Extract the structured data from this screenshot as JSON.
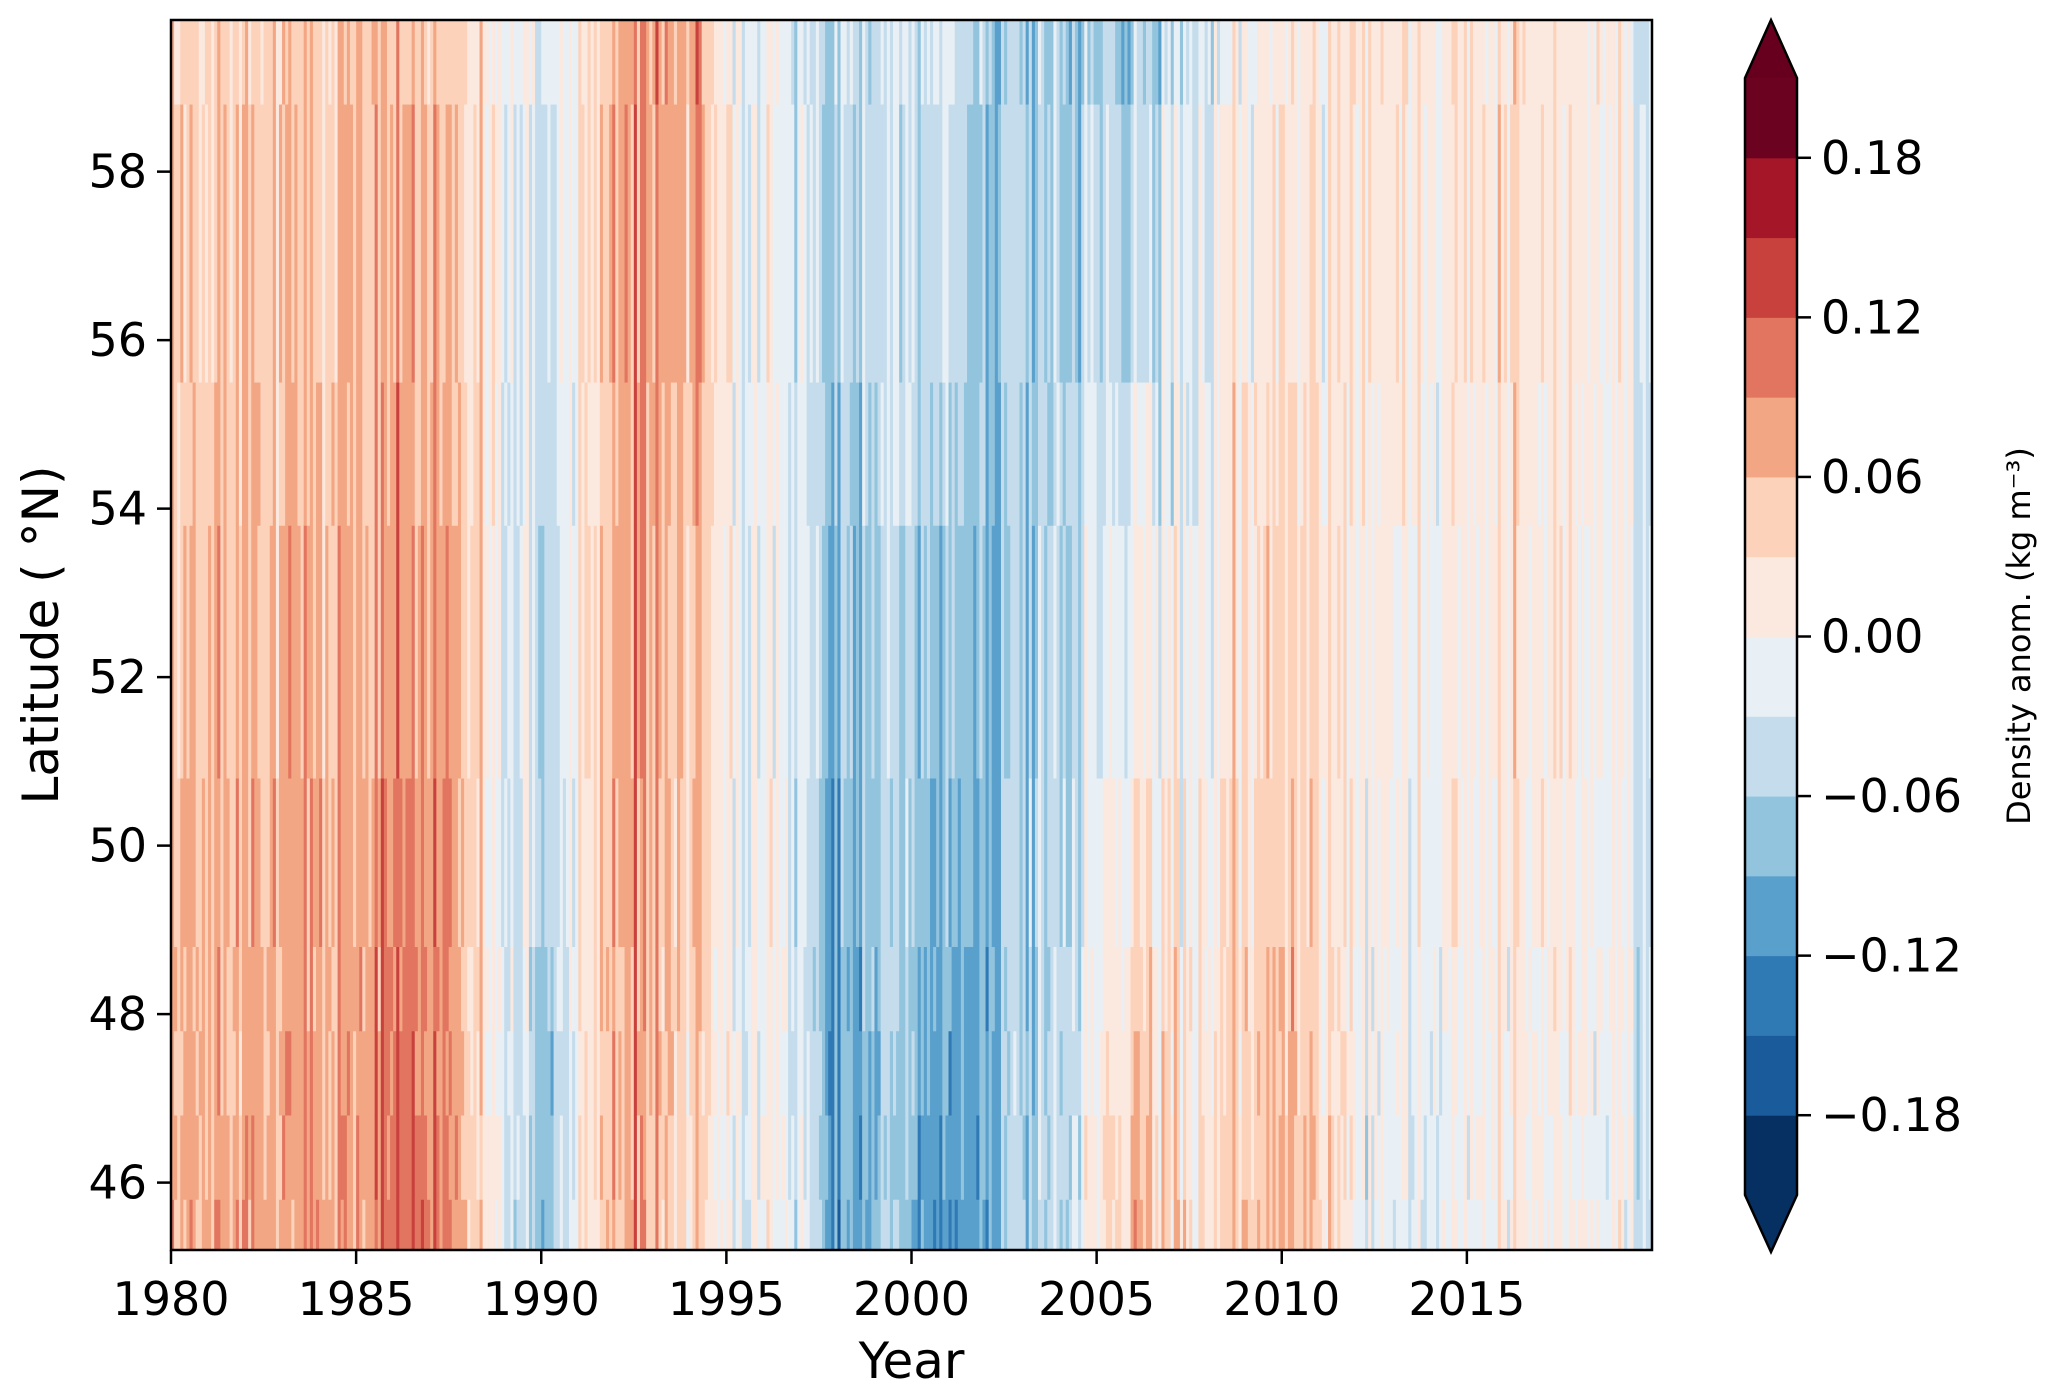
{
  "chart_data": {
    "type": "heatmap",
    "title": "",
    "xlabel": "Year",
    "ylabel": "Latitude ( $^\\circ$N)",
    "ylabel_display": "Latitude ( °N)",
    "xlim": [
      1980,
      2020
    ],
    "ylim": [
      45.2,
      59.8
    ],
    "x_ticks": [
      1980,
      1985,
      1990,
      1995,
      2000,
      2005,
      2010,
      2015
    ],
    "x_tick_labels": [
      "1980",
      "1985",
      "1990",
      "1995",
      "2000",
      "2005",
      "2010",
      "2015"
    ],
    "y_ticks": [
      46,
      48,
      50,
      52,
      54,
      56,
      58
    ],
    "y_tick_labels": [
      "46",
      "48",
      "50",
      "52",
      "54",
      "56",
      "58"
    ],
    "latitude_bands": [
      {
        "from": 45.2,
        "to": 45.8
      },
      {
        "from": 45.8,
        "to": 46.8
      },
      {
        "from": 46.8,
        "to": 47.8
      },
      {
        "from": 47.8,
        "to": 48.8
      },
      {
        "from": 48.8,
        "to": 50.8
      },
      {
        "from": 50.8,
        "to": 53.8
      },
      {
        "from": 53.8,
        "to": 55.5
      },
      {
        "from": 55.5,
        "to": 58.8
      },
      {
        "from": 58.8,
        "to": 59.8
      }
    ],
    "time_resolution": "monthly",
    "signal_pattern": [
      {
        "year": 1980.0,
        "north": 0.04,
        "south": 0.07
      },
      {
        "year": 1982.0,
        "north": 0.03,
        "south": 0.06
      },
      {
        "year": 1983.5,
        "north": 0.05,
        "south": 0.08
      },
      {
        "year": 1985.0,
        "north": 0.04,
        "south": 0.07
      },
      {
        "year": 1986.5,
        "north": 0.07,
        "south": 0.13
      },
      {
        "year": 1987.5,
        "north": 0.05,
        "south": 0.1
      },
      {
        "year": 1988.5,
        "north": 0.02,
        "south": 0.02
      },
      {
        "year": 1990.0,
        "north": -0.02,
        "south": -0.08
      },
      {
        "year": 1991.0,
        "north": 0.01,
        "south": 0.0
      },
      {
        "year": 1992.5,
        "north": 0.09,
        "south": 0.09
      },
      {
        "year": 1994.0,
        "north": 0.08,
        "south": 0.03
      },
      {
        "year": 1995.5,
        "north": 0.0,
        "south": 0.0
      },
      {
        "year": 1997.0,
        "north": -0.03,
        "south": -0.02
      },
      {
        "year": 1998.0,
        "north": -0.05,
        "south": -0.12
      },
      {
        "year": 1999.5,
        "north": -0.03,
        "south": -0.06
      },
      {
        "year": 2001.0,
        "north": -0.03,
        "south": -0.13
      },
      {
        "year": 2002.5,
        "north": -0.07,
        "south": -0.07
      },
      {
        "year": 2004.0,
        "north": -0.05,
        "south": -0.04
      },
      {
        "year": 2006.0,
        "north": -0.07,
        "south": 0.07
      },
      {
        "year": 2007.5,
        "north": -0.04,
        "south": 0.02
      },
      {
        "year": 2009.0,
        "north": 0.0,
        "south": 0.05
      },
      {
        "year": 2010.5,
        "north": 0.01,
        "south": 0.07
      },
      {
        "year": 2012.5,
        "north": 0.02,
        "south": -0.03
      },
      {
        "year": 2014.5,
        "north": 0.03,
        "south": 0.0
      },
      {
        "year": 2016.5,
        "north": 0.03,
        "south": 0.01
      },
      {
        "year": 2018.5,
        "north": 0.02,
        "south": 0.0
      },
      {
        "year": 2019.9,
        "north": -0.03,
        "south": -0.03
      }
    ],
    "colorbar": {
      "label": "Density anom. (kg m$^{-3}$)",
      "label_display": "Density anom. (kg m⁻³)",
      "levels": [
        -0.21,
        -0.18,
        -0.15,
        -0.12,
        -0.09,
        -0.06,
        -0.03,
        0.0,
        0.03,
        0.06,
        0.09,
        0.12,
        0.15,
        0.18,
        0.21
      ],
      "colors": [
        "#053061",
        "#1a5b9c",
        "#2f79b5",
        "#5aa0cd",
        "#92c4de",
        "#c4dcec",
        "#e8f0f5",
        "#fbe8df",
        "#fcd2bb",
        "#f3a683",
        "#e27560",
        "#c8413d",
        "#a51628",
        "#6b0220"
      ],
      "extend": "both",
      "under_color": "#053061",
      "over_color": "#67001f",
      "ticks": [
        -0.18,
        -0.12,
        -0.06,
        0.0,
        0.06,
        0.12,
        0.18
      ],
      "tick_labels": [
        "−0.18",
        "−0.12",
        "−0.06",
        "0.00",
        "0.06",
        "0.12",
        "0.18"
      ]
    }
  }
}
